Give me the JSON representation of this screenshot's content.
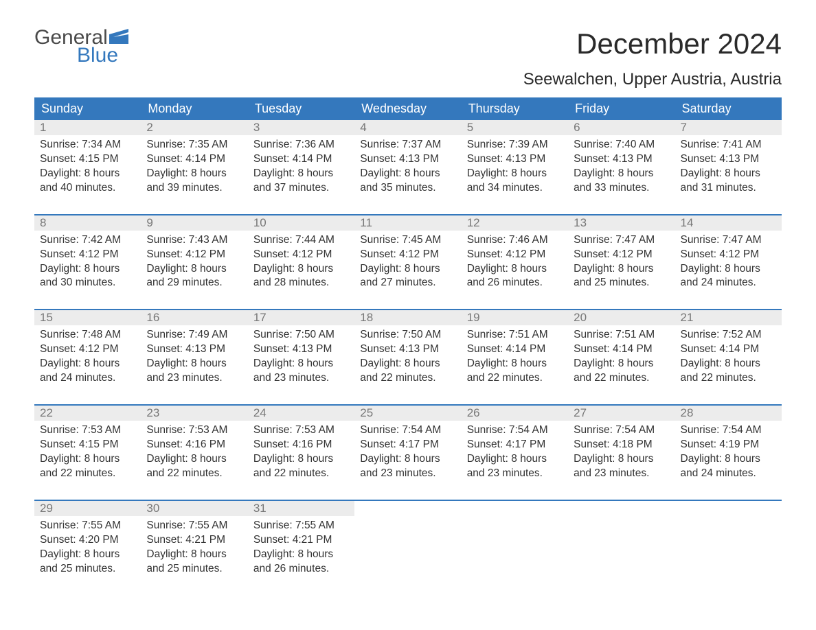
{
  "colors": {
    "header_bg": "#3478bd",
    "header_text": "#ffffff",
    "daynum_bg": "#ececec",
    "daynum_text": "#777777",
    "body_text": "#333333",
    "logo_gray": "#4a4a4a",
    "logo_blue": "#3478bd",
    "page_bg": "#ffffff"
  },
  "logo": {
    "line1": "General",
    "line2": "Blue"
  },
  "title": "December 2024",
  "location": "Seewalchen, Upper Austria, Austria",
  "weekdays": [
    "Sunday",
    "Monday",
    "Tuesday",
    "Wednesday",
    "Thursday",
    "Friday",
    "Saturday"
  ],
  "weeks": [
    [
      {
        "n": "1",
        "sr": "7:34 AM",
        "ss": "4:15 PM",
        "dl": "8 hours and 40 minutes."
      },
      {
        "n": "2",
        "sr": "7:35 AM",
        "ss": "4:14 PM",
        "dl": "8 hours and 39 minutes."
      },
      {
        "n": "3",
        "sr": "7:36 AM",
        "ss": "4:14 PM",
        "dl": "8 hours and 37 minutes."
      },
      {
        "n": "4",
        "sr": "7:37 AM",
        "ss": "4:13 PM",
        "dl": "8 hours and 35 minutes."
      },
      {
        "n": "5",
        "sr": "7:39 AM",
        "ss": "4:13 PM",
        "dl": "8 hours and 34 minutes."
      },
      {
        "n": "6",
        "sr": "7:40 AM",
        "ss": "4:13 PM",
        "dl": "8 hours and 33 minutes."
      },
      {
        "n": "7",
        "sr": "7:41 AM",
        "ss": "4:13 PM",
        "dl": "8 hours and 31 minutes."
      }
    ],
    [
      {
        "n": "8",
        "sr": "7:42 AM",
        "ss": "4:12 PM",
        "dl": "8 hours and 30 minutes."
      },
      {
        "n": "9",
        "sr": "7:43 AM",
        "ss": "4:12 PM",
        "dl": "8 hours and 29 minutes."
      },
      {
        "n": "10",
        "sr": "7:44 AM",
        "ss": "4:12 PM",
        "dl": "8 hours and 28 minutes."
      },
      {
        "n": "11",
        "sr": "7:45 AM",
        "ss": "4:12 PM",
        "dl": "8 hours and 27 minutes."
      },
      {
        "n": "12",
        "sr": "7:46 AM",
        "ss": "4:12 PM",
        "dl": "8 hours and 26 minutes."
      },
      {
        "n": "13",
        "sr": "7:47 AM",
        "ss": "4:12 PM",
        "dl": "8 hours and 25 minutes."
      },
      {
        "n": "14",
        "sr": "7:47 AM",
        "ss": "4:12 PM",
        "dl": "8 hours and 24 minutes."
      }
    ],
    [
      {
        "n": "15",
        "sr": "7:48 AM",
        "ss": "4:12 PM",
        "dl": "8 hours and 24 minutes."
      },
      {
        "n": "16",
        "sr": "7:49 AM",
        "ss": "4:13 PM",
        "dl": "8 hours and 23 minutes."
      },
      {
        "n": "17",
        "sr": "7:50 AM",
        "ss": "4:13 PM",
        "dl": "8 hours and 23 minutes."
      },
      {
        "n": "18",
        "sr": "7:50 AM",
        "ss": "4:13 PM",
        "dl": "8 hours and 22 minutes."
      },
      {
        "n": "19",
        "sr": "7:51 AM",
        "ss": "4:14 PM",
        "dl": "8 hours and 22 minutes."
      },
      {
        "n": "20",
        "sr": "7:51 AM",
        "ss": "4:14 PM",
        "dl": "8 hours and 22 minutes."
      },
      {
        "n": "21",
        "sr": "7:52 AM",
        "ss": "4:14 PM",
        "dl": "8 hours and 22 minutes."
      }
    ],
    [
      {
        "n": "22",
        "sr": "7:53 AM",
        "ss": "4:15 PM",
        "dl": "8 hours and 22 minutes."
      },
      {
        "n": "23",
        "sr": "7:53 AM",
        "ss": "4:16 PM",
        "dl": "8 hours and 22 minutes."
      },
      {
        "n": "24",
        "sr": "7:53 AM",
        "ss": "4:16 PM",
        "dl": "8 hours and 22 minutes."
      },
      {
        "n": "25",
        "sr": "7:54 AM",
        "ss": "4:17 PM",
        "dl": "8 hours and 23 minutes."
      },
      {
        "n": "26",
        "sr": "7:54 AM",
        "ss": "4:17 PM",
        "dl": "8 hours and 23 minutes."
      },
      {
        "n": "27",
        "sr": "7:54 AM",
        "ss": "4:18 PM",
        "dl": "8 hours and 23 minutes."
      },
      {
        "n": "28",
        "sr": "7:54 AM",
        "ss": "4:19 PM",
        "dl": "8 hours and 24 minutes."
      }
    ],
    [
      {
        "n": "29",
        "sr": "7:55 AM",
        "ss": "4:20 PM",
        "dl": "8 hours and 25 minutes."
      },
      {
        "n": "30",
        "sr": "7:55 AM",
        "ss": "4:21 PM",
        "dl": "8 hours and 25 minutes."
      },
      {
        "n": "31",
        "sr": "7:55 AM",
        "ss": "4:21 PM",
        "dl": "8 hours and 26 minutes."
      },
      null,
      null,
      null,
      null
    ]
  ],
  "labels": {
    "sunrise": "Sunrise:",
    "sunset": "Sunset:",
    "daylight": "Daylight:"
  }
}
